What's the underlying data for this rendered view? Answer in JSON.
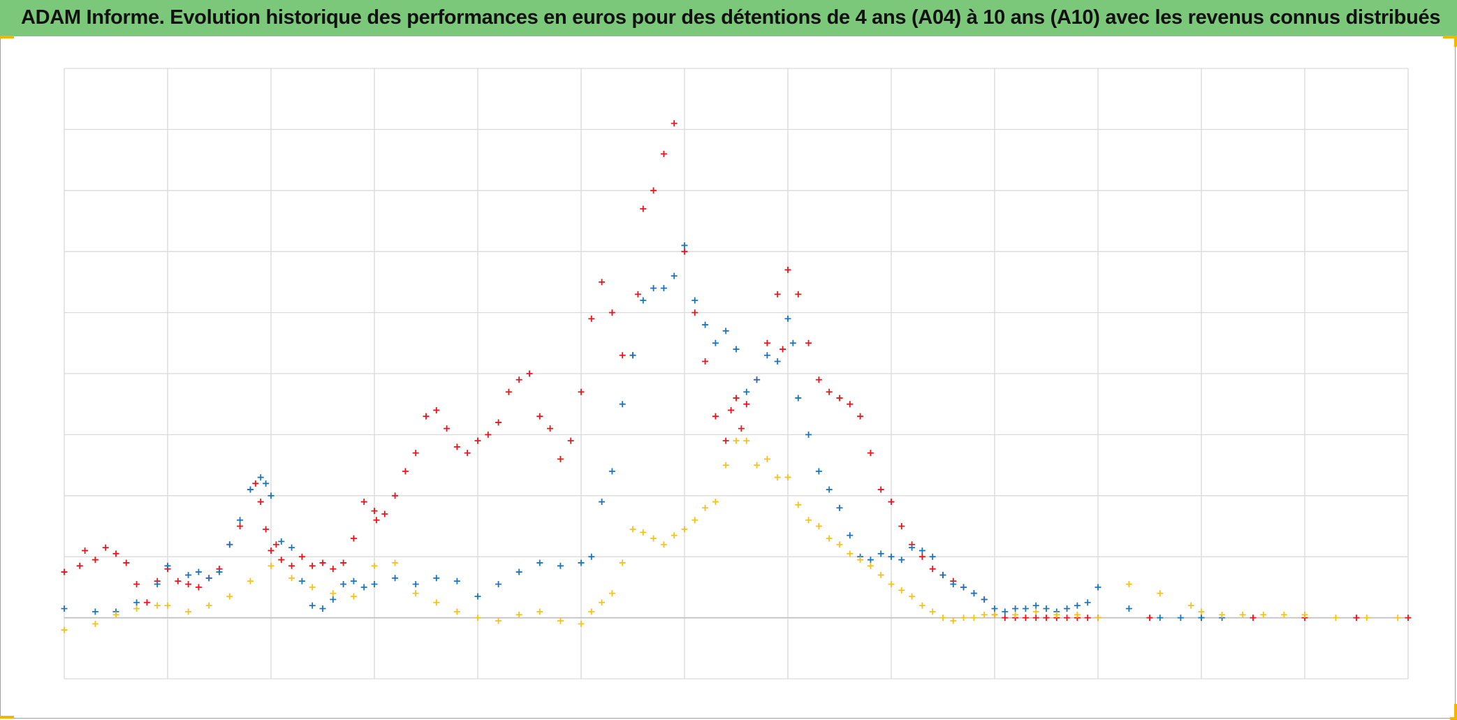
{
  "title": "ADAM Informe. Evolution historique des performances en euros pour des détentions de 4 ans (A04) à 10 ans (A10) avec les revenus connus distribués",
  "colors": {
    "title_bar": "#7cc87a",
    "grid": "#d9d9d9",
    "corner_marks": "#f4b400"
  },
  "chart_data": {
    "type": "scatter",
    "marker": "plus",
    "title": "ADAM Informe. Evolution historique des performances en euros pour des détentions de 4 ans (A04) à 10 ans (A10) avec les revenus connus distribués",
    "xlabel": "",
    "ylabel": "",
    "xlim": [
      0,
      13
    ],
    "ylim": [
      -1,
      9
    ],
    "x_gridlines": 13,
    "y_gridlines": 10,
    "tick_labels_shown": false,
    "legend": "none",
    "series": [
      {
        "color": "#e8141c",
        "x": [
          0.0,
          0.15,
          0.2,
          0.3,
          0.4,
          0.5,
          0.6,
          0.7,
          0.8,
          0.9,
          1.0,
          1.1,
          1.2,
          1.3,
          1.4,
          1.5,
          1.6,
          1.7,
          1.8,
          1.85,
          1.9,
          1.95,
          2.0,
          2.05,
          2.1,
          2.2,
          2.3,
          2.4,
          2.5,
          2.6,
          2.7,
          2.8,
          2.9,
          3.0,
          3.02,
          3.1,
          3.2,
          3.3,
          3.4,
          3.5,
          3.6,
          3.7,
          3.8,
          3.9,
          4.0,
          4.1,
          4.2,
          4.3,
          4.4,
          4.5,
          4.6,
          4.7,
          4.8,
          4.9,
          5.0,
          5.1,
          5.2,
          5.3,
          5.4,
          5.5,
          5.55,
          5.6,
          5.7,
          5.8,
          5.9,
          6.0,
          6.1,
          6.2,
          6.3,
          6.4,
          6.45,
          6.5,
          6.55,
          6.6,
          6.7,
          6.8,
          6.9,
          6.95,
          7.0,
          7.1,
          7.2,
          7.3,
          7.4,
          7.5,
          7.6,
          7.7,
          7.8,
          7.9,
          8.0,
          8.1,
          8.2,
          8.3,
          8.4,
          8.5,
          8.6,
          8.7,
          8.8,
          8.9,
          9.0,
          9.1,
          9.2,
          9.3,
          9.4,
          9.5,
          9.6,
          9.7,
          9.8,
          9.9,
          10.0,
          10.5,
          11.0,
          11.5,
          12.0,
          12.5,
          13.0
        ],
        "y": [
          0.75,
          0.85,
          1.1,
          0.95,
          1.15,
          1.05,
          0.9,
          0.55,
          0.25,
          0.6,
          0.8,
          0.6,
          0.55,
          0.5,
          0.65,
          0.8,
          1.2,
          1.5,
          2.1,
          2.2,
          1.9,
          1.45,
          1.1,
          1.2,
          0.95,
          0.85,
          1.0,
          0.85,
          0.9,
          0.8,
          0.9,
          1.3,
          1.9,
          1.75,
          1.6,
          1.7,
          2.0,
          2.4,
          2.7,
          3.3,
          3.4,
          3.1,
          2.8,
          2.7,
          2.9,
          3.0,
          3.2,
          3.7,
          3.9,
          4.0,
          3.3,
          3.1,
          2.6,
          2.9,
          3.7,
          4.9,
          5.5,
          5.0,
          4.3,
          4.3,
          5.3,
          6.7,
          7.0,
          7.6,
          8.1,
          6.0,
          5.0,
          4.2,
          3.3,
          2.9,
          3.4,
          3.6,
          3.1,
          3.5,
          3.9,
          4.5,
          5.3,
          4.4,
          5.7,
          5.3,
          4.5,
          3.9,
          3.7,
          3.6,
          3.5,
          3.3,
          2.7,
          2.1,
          1.9,
          1.5,
          1.2,
          1.0,
          0.8,
          0.7,
          0.6,
          0.5,
          0.4,
          0.3,
          0.05,
          0.0,
          0.0,
          0.0,
          0.0,
          0.0,
          0.0,
          0.0,
          0.0,
          0.0,
          0.0,
          0.0,
          0.0,
          0.0,
          0.0,
          0.0,
          0.0
        ]
      },
      {
        "color": "#1a75bc",
        "x": [
          0.0,
          0.3,
          0.5,
          0.7,
          0.9,
          1.0,
          1.2,
          1.3,
          1.4,
          1.5,
          1.6,
          1.7,
          1.8,
          1.9,
          1.95,
          2.0,
          2.1,
          2.2,
          2.3,
          2.4,
          2.5,
          2.6,
          2.7,
          2.8,
          2.9,
          3.0,
          3.2,
          3.4,
          3.6,
          3.8,
          4.0,
          4.2,
          4.4,
          4.6,
          4.8,
          5.0,
          5.1,
          5.2,
          5.3,
          5.4,
          5.5,
          5.6,
          5.7,
          5.8,
          5.9,
          6.0,
          6.1,
          6.2,
          6.3,
          6.4,
          6.5,
          6.6,
          6.7,
          6.8,
          6.9,
          7.0,
          7.05,
          7.1,
          7.2,
          7.3,
          7.4,
          7.5,
          7.6,
          7.7,
          7.8,
          7.9,
          8.0,
          8.1,
          8.2,
          8.3,
          8.4,
          8.5,
          8.6,
          8.7,
          8.8,
          8.9,
          9.0,
          9.1,
          9.2,
          9.3,
          9.4,
          9.5,
          9.6,
          9.7,
          9.8,
          9.9,
          10.0,
          10.3,
          10.6,
          10.8,
          11.0,
          11.2
        ],
        "y": [
          0.15,
          0.1,
          0.1,
          0.25,
          0.55,
          0.85,
          0.7,
          0.75,
          0.65,
          0.75,
          1.2,
          1.6,
          2.1,
          2.3,
          2.2,
          2.0,
          1.25,
          1.15,
          0.6,
          0.2,
          0.15,
          0.3,
          0.55,
          0.6,
          0.5,
          0.55,
          0.65,
          0.55,
          0.65,
          0.6,
          0.35,
          0.55,
          0.75,
          0.9,
          0.85,
          0.9,
          1.0,
          1.9,
          2.4,
          3.5,
          4.3,
          5.2,
          5.4,
          5.4,
          5.6,
          6.1,
          5.2,
          4.8,
          4.5,
          4.7,
          4.4,
          3.7,
          3.9,
          4.3,
          4.2,
          4.9,
          4.5,
          3.6,
          3.0,
          2.4,
          2.1,
          1.8,
          1.35,
          1.0,
          0.95,
          1.05,
          1.0,
          0.95,
          1.15,
          1.1,
          1.0,
          0.7,
          0.55,
          0.5,
          0.4,
          0.3,
          0.15,
          0.1,
          0.15,
          0.15,
          0.2,
          0.15,
          0.1,
          0.15,
          0.2,
          0.25,
          0.5,
          0.15,
          0.0,
          0.0,
          0.0,
          0.0
        ]
      },
      {
        "color": "#f5c21b",
        "x": [
          0.0,
          0.3,
          0.5,
          0.7,
          0.9,
          1.0,
          1.2,
          1.4,
          1.6,
          1.8,
          2.0,
          2.2,
          2.4,
          2.6,
          2.8,
          3.0,
          3.2,
          3.4,
          3.6,
          3.8,
          4.0,
          4.2,
          4.4,
          4.6,
          4.8,
          5.0,
          5.1,
          5.2,
          5.3,
          5.4,
          5.5,
          5.6,
          5.7,
          5.8,
          5.9,
          6.0,
          6.1,
          6.2,
          6.3,
          6.4,
          6.5,
          6.6,
          6.7,
          6.8,
          6.9,
          7.0,
          7.1,
          7.2,
          7.3,
          7.4,
          7.5,
          7.6,
          7.7,
          7.8,
          7.9,
          8.0,
          8.1,
          8.2,
          8.3,
          8.4,
          8.5,
          8.6,
          8.7,
          8.8,
          8.9,
          9.0,
          9.2,
          9.4,
          9.6,
          9.8,
          10.0,
          10.3,
          10.6,
          10.9,
          11.0,
          11.2,
          11.4,
          11.6,
          11.8,
          12.0,
          12.3,
          12.6,
          12.9
        ],
        "y": [
          -0.2,
          -0.1,
          0.05,
          0.15,
          0.2,
          0.2,
          0.1,
          0.2,
          0.35,
          0.6,
          0.85,
          0.65,
          0.5,
          0.4,
          0.35,
          0.85,
          0.9,
          0.4,
          0.25,
          0.1,
          0.0,
          -0.05,
          0.05,
          0.1,
          -0.05,
          -0.1,
          0.1,
          0.25,
          0.4,
          0.9,
          1.45,
          1.4,
          1.3,
          1.2,
          1.35,
          1.45,
          1.6,
          1.8,
          1.9,
          2.5,
          2.9,
          2.9,
          2.5,
          2.6,
          2.3,
          2.3,
          1.85,
          1.6,
          1.5,
          1.3,
          1.2,
          1.05,
          0.95,
          0.85,
          0.7,
          0.55,
          0.45,
          0.35,
          0.2,
          0.1,
          0.0,
          -0.05,
          0.0,
          0.0,
          0.05,
          0.05,
          0.05,
          0.1,
          0.05,
          0.05,
          0.0,
          0.55,
          0.4,
          0.2,
          0.1,
          0.05,
          0.05,
          0.05,
          0.05,
          0.05,
          0.0,
          0.0,
          0.0
        ]
      }
    ]
  }
}
